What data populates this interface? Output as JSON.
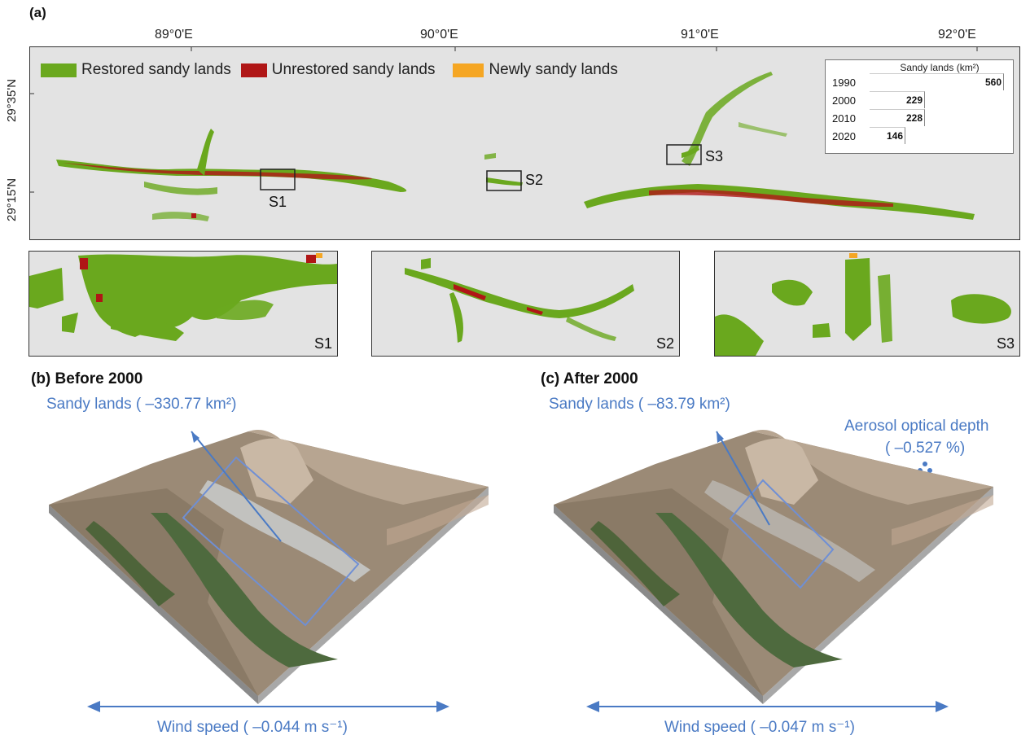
{
  "panel_a": {
    "letter": "(a)",
    "longitudes": [
      "89°0'E",
      "90°0'E",
      "91°0'E",
      "92°0'E"
    ],
    "latitudes": [
      "29°35'N",
      "29°15'N"
    ],
    "legend": [
      {
        "label": "Restored sandy lands",
        "color": "#6aa81e"
      },
      {
        "label": "Unrestored sandy lands",
        "color": "#b01616"
      },
      {
        "label": "Newly sandy lands",
        "color": "#f5a623"
      }
    ],
    "site_labels": [
      "S1",
      "S2",
      "S3"
    ],
    "table": {
      "title": "Sandy lands (km²)",
      "rows": [
        {
          "year": "1990",
          "value": "560",
          "area": 560
        },
        {
          "year": "2000",
          "value": "229",
          "area": 229
        },
        {
          "year": "2010",
          "value": "228",
          "area": 228
        },
        {
          "year": "2020",
          "value": "146",
          "area": 146
        }
      ]
    },
    "insets": [
      "S1",
      "S2",
      "S3"
    ]
  },
  "panel_b": {
    "title": "(b) Before 2000",
    "sandy": "Sandy lands ( –330.77 km²)",
    "wind": "Wind speed ( –0.044 m s⁻¹)"
  },
  "panel_c": {
    "title": "(c) After 2000",
    "sandy": "Sandy lands ( –83.79 km²)",
    "aerosol_line1": "Aerosol optical depth",
    "aerosol_line2": "( –0.527 %)",
    "wind": "Wind speed ( –0.047 m s⁻¹)"
  },
  "colors": {
    "restored": "#6aa81e",
    "unrestored": "#b01616",
    "newly": "#f5a623",
    "annotation_blue": "#4a7ac4",
    "map_background": "#e3e3e3"
  }
}
